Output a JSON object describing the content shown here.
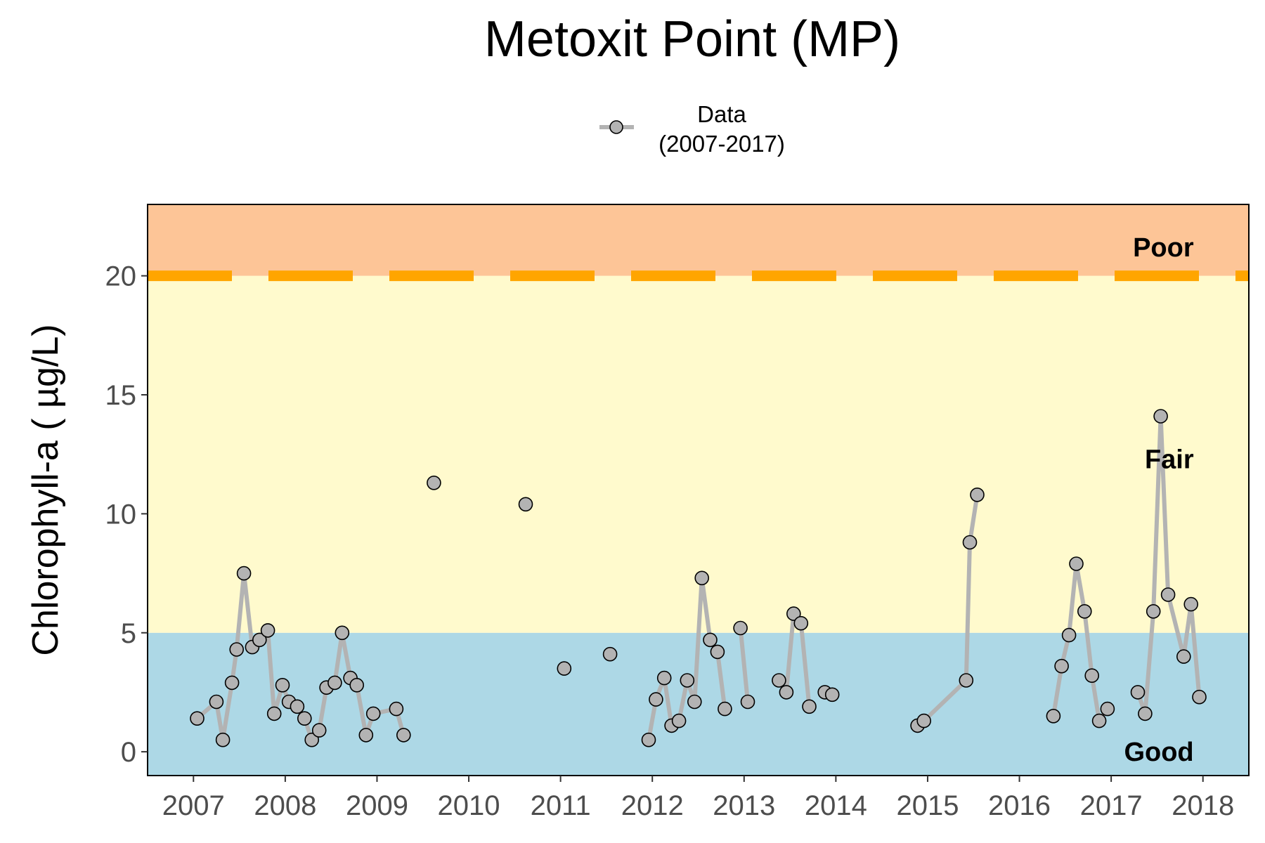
{
  "chart_data": {
    "type": "line",
    "title": "Metoxit Point (MP)",
    "ylabel": "Chlorophyll-a ( µg/L)",
    "xlabel": "",
    "xlim": [
      2006.5,
      2018.5
    ],
    "ylim": [
      -1,
      23
    ],
    "x_ticks": [
      2007,
      2008,
      2009,
      2010,
      2011,
      2012,
      2013,
      2014,
      2015,
      2016,
      2017,
      2018
    ],
    "x_tick_labels": [
      "2007",
      "2008",
      "2009",
      "2010",
      "2011",
      "2012",
      "2013",
      "2014",
      "2015",
      "2016",
      "2017",
      "2018"
    ],
    "y_ticks": [
      0,
      5,
      10,
      15,
      20
    ],
    "y_tick_labels": [
      "0",
      "5",
      "10",
      "15",
      "20"
    ],
    "grid": false,
    "legend": {
      "position": "top",
      "label_line1": "Data",
      "label_line2": "(2007-2017)"
    },
    "bands": [
      {
        "name": "Good",
        "from": -1,
        "to": 5,
        "color": "#add8e6"
      },
      {
        "name": "Fair",
        "from": 5,
        "to": 20,
        "color": "#fffacd"
      },
      {
        "name": "Poor",
        "from": 20,
        "to": 23,
        "color": "#fdc597"
      }
    ],
    "band_labels": [
      {
        "text": "Poor",
        "x": 2017.9,
        "y": 21.2
      },
      {
        "text": "Fair",
        "x": 2017.9,
        "y": 12.3
      },
      {
        "text": "Good",
        "x": 2017.9,
        "y": 0.0
      }
    ],
    "threshold": {
      "y": 20,
      "color": "#ffa500",
      "style": "dashed"
    },
    "series": [
      {
        "name": "Data (2007-2017)",
        "line_color": "#b3b3b3",
        "marker_fill": "#b3b3b3",
        "marker_stroke": "#000000",
        "segments": [
          [
            [
              2007.04,
              1.4
            ],
            [
              2007.25,
              2.1
            ],
            [
              2007.32,
              0.5
            ],
            [
              2007.42,
              2.9
            ],
            [
              2007.47,
              4.3
            ],
            [
              2007.55,
              7.5
            ],
            [
              2007.64,
              4.4
            ],
            [
              2007.72,
              4.7
            ],
            [
              2007.81,
              5.1
            ],
            [
              2007.88,
              1.6
            ],
            [
              2007.97,
              2.8
            ],
            [
              2008.04,
              2.1
            ],
            [
              2008.13,
              1.9
            ],
            [
              2008.21,
              1.4
            ],
            [
              2008.29,
              0.5
            ],
            [
              2008.37,
              0.9
            ],
            [
              2008.45,
              2.7
            ],
            [
              2008.54,
              2.9
            ],
            [
              2008.62,
              5.0
            ],
            [
              2008.71,
              3.1
            ],
            [
              2008.78,
              2.8
            ],
            [
              2008.88,
              0.7
            ],
            [
              2008.96,
              1.6
            ],
            [
              2009.21,
              1.8
            ],
            [
              2009.29,
              0.7
            ]
          ],
          [
            [
              2009.62,
              11.3
            ]
          ],
          [
            [
              2010.62,
              10.4
            ]
          ],
          [
            [
              2011.04,
              3.5
            ]
          ],
          [
            [
              2011.54,
              4.1
            ]
          ],
          [
            [
              2011.96,
              0.5
            ],
            [
              2012.04,
              2.2
            ],
            [
              2012.13,
              3.1
            ],
            [
              2012.21,
              1.1
            ],
            [
              2012.29,
              1.3
            ],
            [
              2012.38,
              3.0
            ],
            [
              2012.46,
              2.1
            ],
            [
              2012.54,
              7.3
            ],
            [
              2012.63,
              4.7
            ],
            [
              2012.71,
              4.2
            ],
            [
              2012.79,
              1.8
            ]
          ],
          [
            [
              2012.96,
              5.2
            ],
            [
              2013.04,
              2.1
            ]
          ],
          [
            [
              2013.38,
              3.0
            ],
            [
              2013.46,
              2.5
            ],
            [
              2013.54,
              5.8
            ],
            [
              2013.62,
              5.4
            ],
            [
              2013.71,
              1.9
            ]
          ],
          [
            [
              2013.88,
              2.5
            ],
            [
              2013.96,
              2.4
            ]
          ],
          [
            [
              2014.89,
              1.1
            ],
            [
              2014.96,
              1.3
            ],
            [
              2015.42,
              3.0
            ],
            [
              2015.46,
              8.8
            ],
            [
              2015.54,
              10.8
            ]
          ],
          [
            [
              2016.37,
              1.5
            ],
            [
              2016.46,
              3.6
            ],
            [
              2016.54,
              4.9
            ],
            [
              2016.62,
              7.9
            ],
            [
              2016.71,
              5.9
            ],
            [
              2016.79,
              3.2
            ],
            [
              2016.87,
              1.3
            ],
            [
              2016.96,
              1.8
            ]
          ],
          [
            [
              2017.29,
              2.5
            ],
            [
              2017.37,
              1.6
            ],
            [
              2017.46,
              5.9
            ],
            [
              2017.54,
              14.1
            ],
            [
              2017.62,
              6.6
            ],
            [
              2017.79,
              4.0
            ],
            [
              2017.87,
              6.2
            ],
            [
              2017.96,
              2.3
            ]
          ]
        ]
      }
    ]
  }
}
